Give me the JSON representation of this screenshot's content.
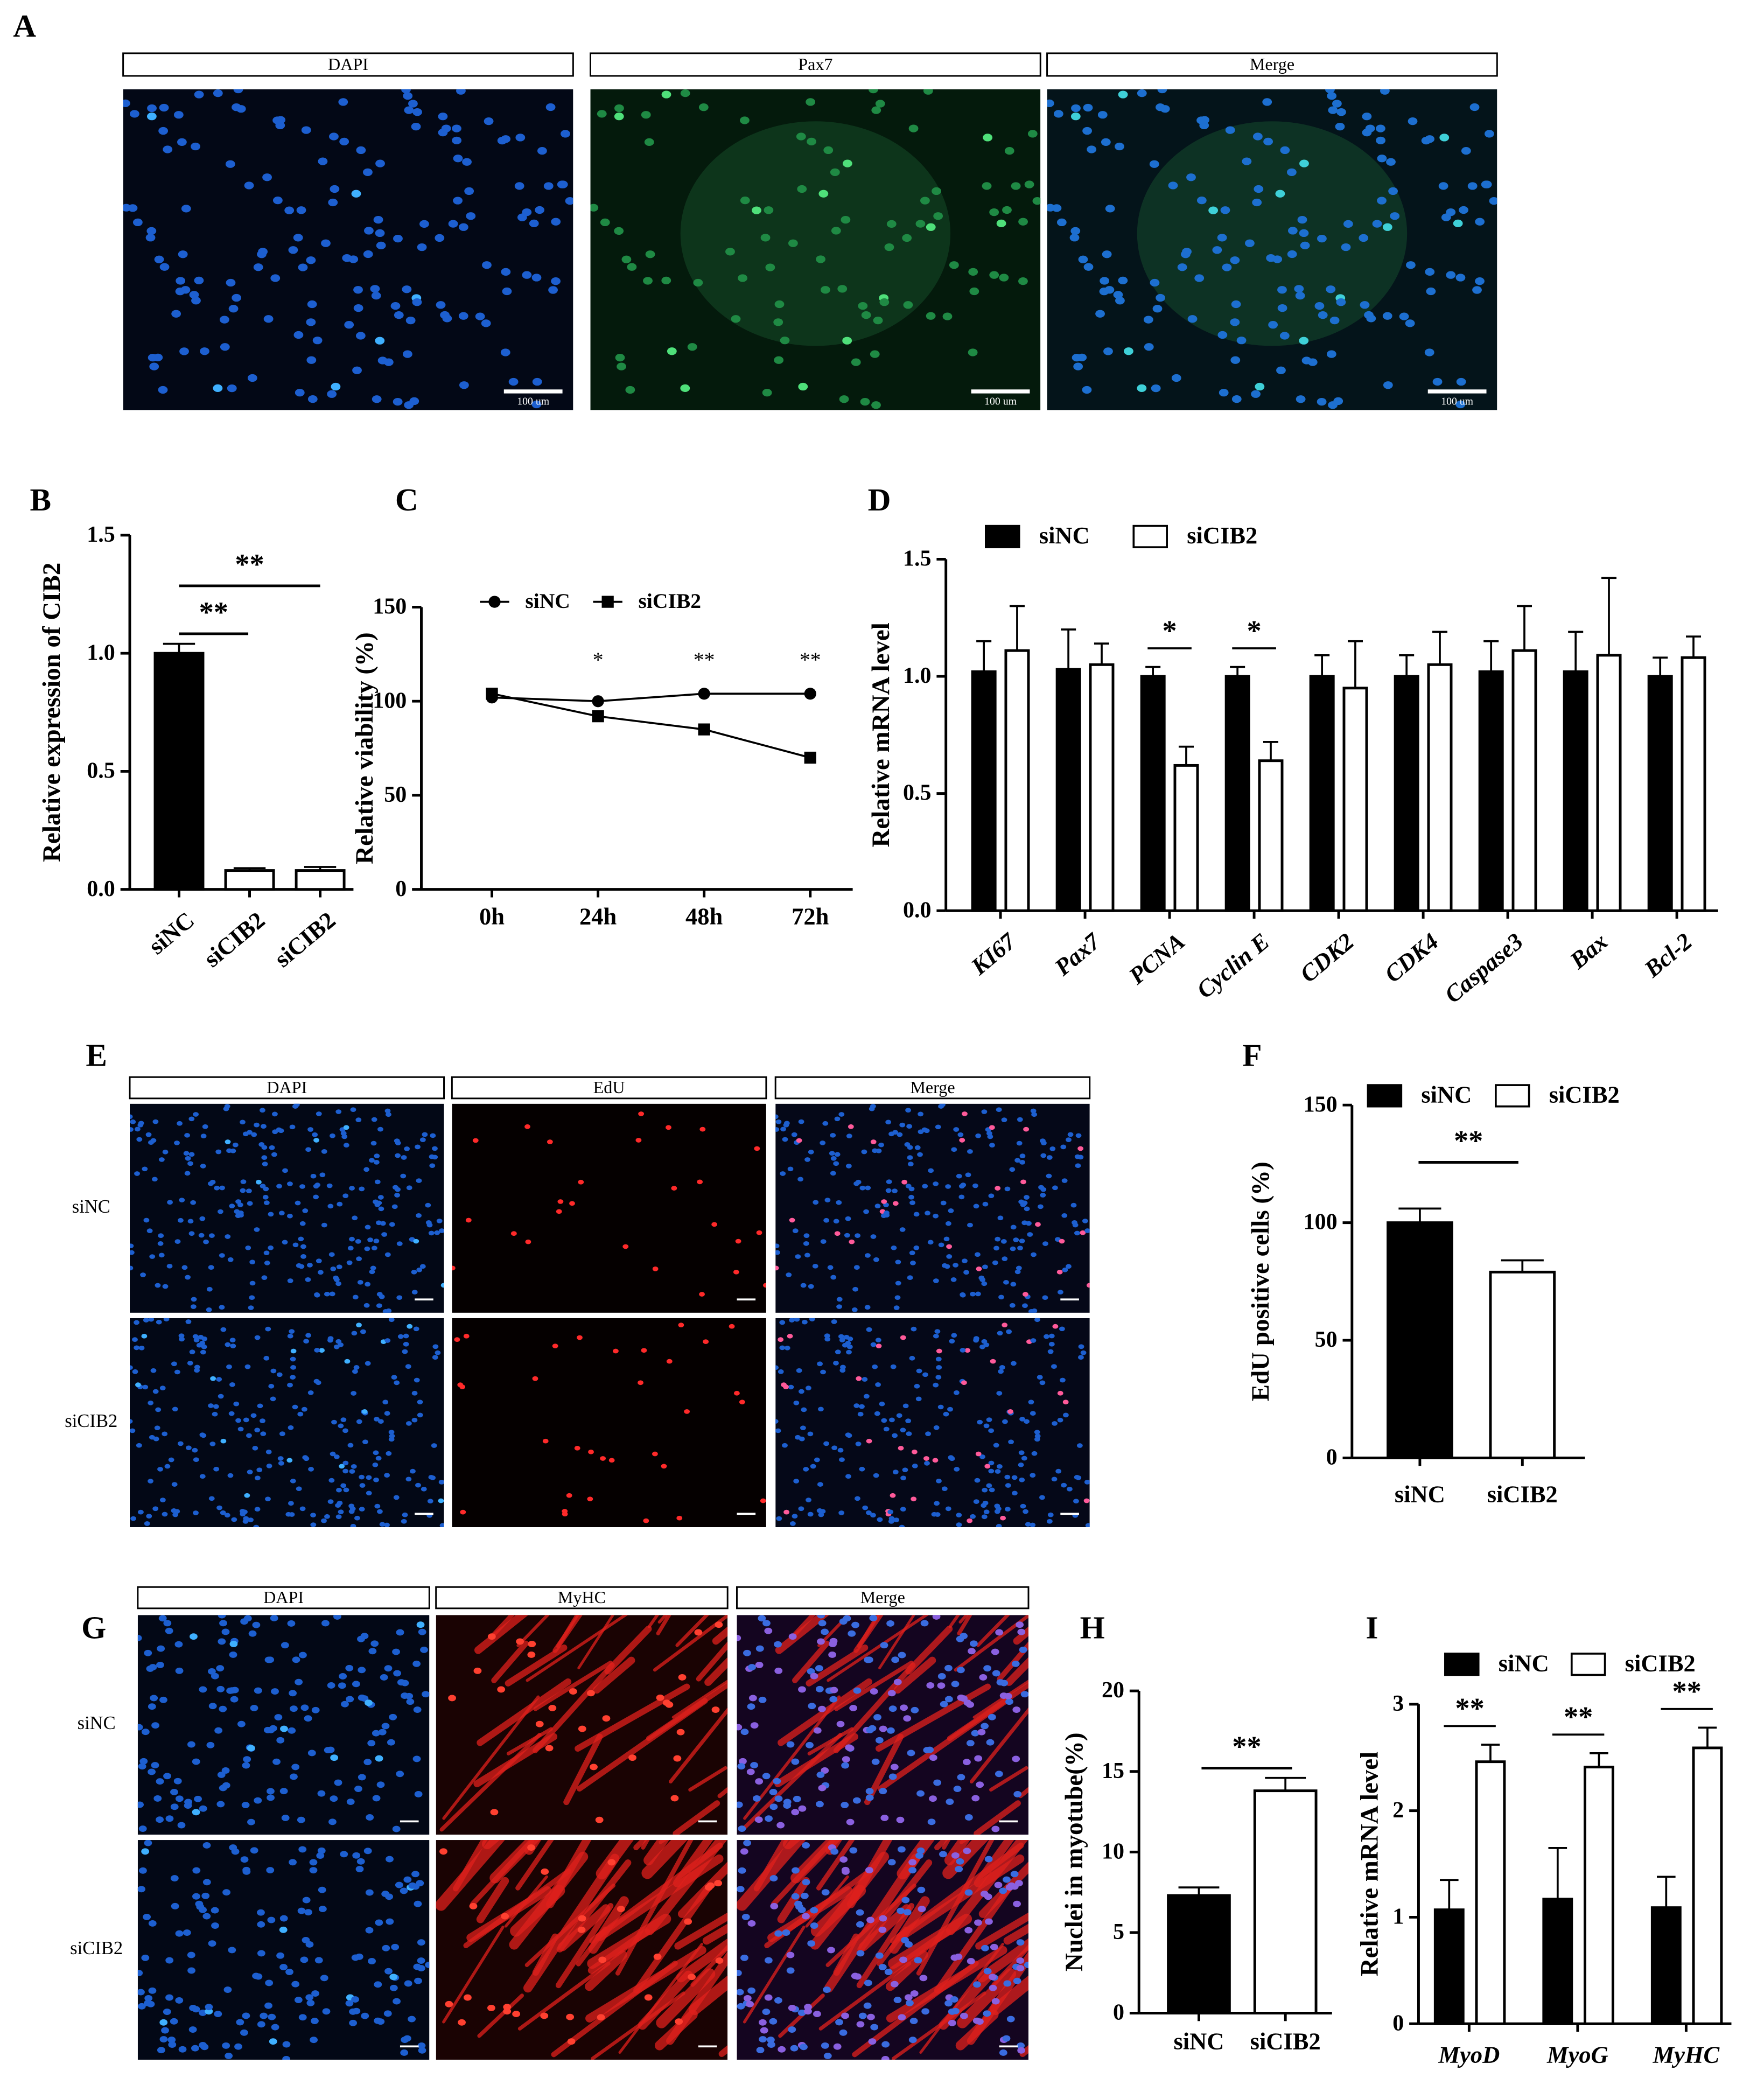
{
  "figure_panels": [
    {
      "letter": "A",
      "columns": [
        "DAPI",
        "Pax7",
        "Merge"
      ],
      "scale_bars": [
        "100 um",
        "100 um",
        "100 um"
      ]
    },
    {
      "letter": "E",
      "columns": [
        "DAPI",
        "EdU",
        "Merge"
      ],
      "rows": [
        "siNC",
        "siCIB2"
      ]
    },
    {
      "letter": "G",
      "columns": [
        "DAPI",
        "MyHC",
        "Merge"
      ],
      "rows": [
        "siNC",
        "siCIB2"
      ]
    }
  ],
  "chart_data": [
    {
      "type": "bar",
      "letter": "B",
      "y_label": "Relative expression of CIB2",
      "categories": [
        "siNC",
        "siCIB2",
        "siCIB2"
      ],
      "values": [
        1.0,
        0.08,
        0.08
      ],
      "errors": [
        0.04,
        0.01,
        0.015
      ],
      "colors": [
        "#000000",
        "#ffffff",
        "#ffffff"
      ],
      "ylim": [
        0,
        1.5
      ],
      "yticks": [
        {
          "value": 0,
          "label": "0.0"
        },
        0.5,
        {
          "value": 1,
          "label": "1.0"
        },
        1.5
      ],
      "annotations": [
        "**",
        "**"
      ]
    },
    {
      "type": "line",
      "letter": "C",
      "y_label": "Relative viability (%)",
      "categories": [
        "0h",
        "24h",
        "48h",
        "72h"
      ],
      "series": [
        {
          "name": "siNC",
          "color": "#000000",
          "marker": "circle",
          "values": [
            102,
            100,
            104,
            104
          ]
        },
        {
          "name": "siCIB2",
          "color": "#000000",
          "marker": "square",
          "values": [
            104,
            92,
            85,
            70
          ]
        }
      ],
      "ylim": [
        0,
        150
      ],
      "yticks": [
        0,
        50,
        100,
        150
      ],
      "significance": [
        null,
        "*",
        "**",
        "**"
      ]
    },
    {
      "type": "bar",
      "letter": "D",
      "y_label": "Relative mRNA level",
      "categories": [
        "KI67",
        "Pax7",
        "PCNA",
        "Cyclin E",
        "CDK2",
        "CDK4",
        "Caspase3",
        "Bax",
        "Bcl-2"
      ],
      "series": [
        {
          "name": "siNC",
          "color": "#000000",
          "values": [
            1.02,
            1.03,
            1.0,
            1.0,
            1.0,
            1.0,
            1.02,
            1.02,
            1.0
          ],
          "errors": [
            0.13,
            0.17,
            0.04,
            0.04,
            0.09,
            0.09,
            0.13,
            0.17,
            0.08
          ]
        },
        {
          "name": "siCIB2",
          "color": "#ffffff",
          "values": [
            1.11,
            1.05,
            0.62,
            0.64,
            0.95,
            1.05,
            1.11,
            1.09,
            1.08
          ],
          "errors": [
            0.19,
            0.09,
            0.08,
            0.08,
            0.2,
            0.14,
            0.19,
            0.33,
            0.09
          ]
        }
      ],
      "ylim": [
        0,
        1.5
      ],
      "yticks": [
        {
          "value": 0,
          "label": "0.0"
        },
        0.5,
        {
          "value": 1,
          "label": "1.0"
        },
        1.5
      ],
      "significance": [
        null,
        null,
        "*",
        "*",
        null,
        null,
        null,
        null,
        null
      ]
    },
    {
      "type": "bar",
      "letter": "F",
      "y_label": "EdU positive cells (%)",
      "categories": [
        "siNC",
        "siCIB2"
      ],
      "values": [
        100,
        79
      ],
      "errors": [
        6,
        5
      ],
      "colors": [
        "#000000",
        "#ffffff"
      ],
      "legend": [
        {
          "label": "siNC",
          "color": "#000000"
        },
        {
          "label": "siCIB2",
          "color": "#ffffff"
        }
      ],
      "ylim": [
        0,
        150
      ],
      "yticks": [
        0,
        50,
        100,
        150
      ],
      "annotations": [
        "**"
      ]
    },
    {
      "type": "bar",
      "letter": "H",
      "y_label": "Nuclei in myotube(%)",
      "categories": [
        "siNC",
        "siCIB2"
      ],
      "values": [
        7.3,
        13.8
      ],
      "errors": [
        0.5,
        0.8
      ],
      "colors": [
        "#000000",
        "#ffffff"
      ],
      "ylim": [
        0,
        20
      ],
      "yticks": [
        0,
        5,
        10,
        15,
        20
      ],
      "annotations": [
        "**"
      ]
    },
    {
      "type": "bar",
      "letter": "I",
      "y_label": "Relative mRNA level",
      "categories": [
        "MyoD",
        "MyoG",
        "MyHC"
      ],
      "series": [
        {
          "name": "siNC",
          "color": "#000000",
          "values": [
            1.07,
            1.17,
            1.09
          ],
          "errors": [
            0.28,
            0.48,
            0.29
          ]
        },
        {
          "name": "siCIB2",
          "color": "#ffffff",
          "values": [
            2.46,
            2.41,
            2.59
          ],
          "errors": [
            0.16,
            0.13,
            0.19
          ]
        }
      ],
      "ylim": [
        0,
        3
      ],
      "yticks": [
        0,
        1,
        2,
        3
      ],
      "significance": [
        "**",
        "**",
        "**"
      ]
    }
  ]
}
